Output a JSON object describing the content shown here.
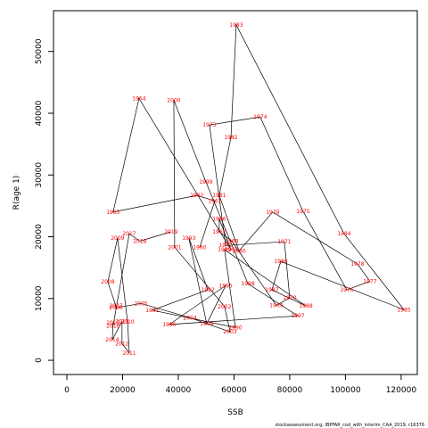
{
  "chart_data": {
    "type": "scatter",
    "x_label": "SSB",
    "y_label": "R(age 1)",
    "footnote": "stockassessment.org, IBPFAR_cod_with_interim_CAA_2019, r16376",
    "connect": true,
    "line_color": "#000000",
    "label_color": "#ff0000",
    "point_labels": [
      "1960",
      "1961",
      "1962",
      "1963",
      "1964",
      "1965",
      "1966",
      "1967",
      "1968",
      "1969",
      "1970",
      "1971",
      "1972",
      "1973",
      "1974",
      "1975",
      "1976",
      "1977",
      "1978",
      "1979",
      "1980",
      "1981",
      "1982",
      "1983",
      "1984",
      "1985",
      "1986",
      "1987",
      "1988",
      "1989",
      "1990",
      "1991",
      "1992",
      "1993",
      "1994",
      "1995",
      "1996",
      "1997",
      "1998",
      "1999",
      "2000",
      "2001",
      "2002",
      "2003",
      "2004",
      "2005",
      "2006",
      "2007",
      "2008",
      "2009",
      "2010",
      "2011",
      "2012",
      "2013",
      "2014",
      "2015",
      "2016",
      "2017",
      "2018",
      "2019"
    ],
    "x": [
      47700,
      53100,
      46700,
      16600,
      25900,
      58900,
      54700,
      54700,
      59200,
      75200,
      80000,
      78100,
      57000,
      51200,
      69400,
      84800,
      100500,
      108800,
      104300,
      73900,
      61800,
      54700,
      58900,
      60800,
      99500,
      121000,
      76800,
      73600,
      85800,
      56600,
      60500,
      30700,
      50600,
      43800,
      50200,
      57000,
      36800,
      82900,
      65000,
      49900,
      38400,
      38700,
      56600,
      58600,
      44200,
      26600,
      17600,
      17600,
      14700,
      18200,
      21800,
      22400,
      19800,
      19800,
      16300,
      16600,
      16600,
      22400,
      26200,
      37400
    ],
    "values": [
      18300,
      25800,
      26700,
      24000,
      42400,
      17900,
      22900,
      20800,
      19300,
      8900,
      10100,
      19200,
      18600,
      38100,
      39400,
      24100,
      11400,
      12800,
      15600,
      24000,
      17700,
      26700,
      36100,
      54300,
      20500,
      8200,
      16000,
      11400,
      8800,
      17900,
      5300,
      8100,
      11400,
      19800,
      5900,
      12100,
      5800,
      7200,
      12400,
      28900,
      42100,
      18300,
      8700,
      4600,
      6900,
      9200,
      8500,
      8800,
      12700,
      19800,
      6200,
      1200,
      2700,
      6300,
      3300,
      6100,
      5600,
      20500,
      19300,
      20800
    ],
    "xlim": [
      -4800,
      125800
    ],
    "ylim": [
      -2300,
      56600
    ],
    "xticks": [
      0,
      20000,
      40000,
      60000,
      80000,
      100000,
      120000
    ],
    "yticks": [
      0,
      10000,
      20000,
      30000,
      40000,
      50000
    ]
  }
}
